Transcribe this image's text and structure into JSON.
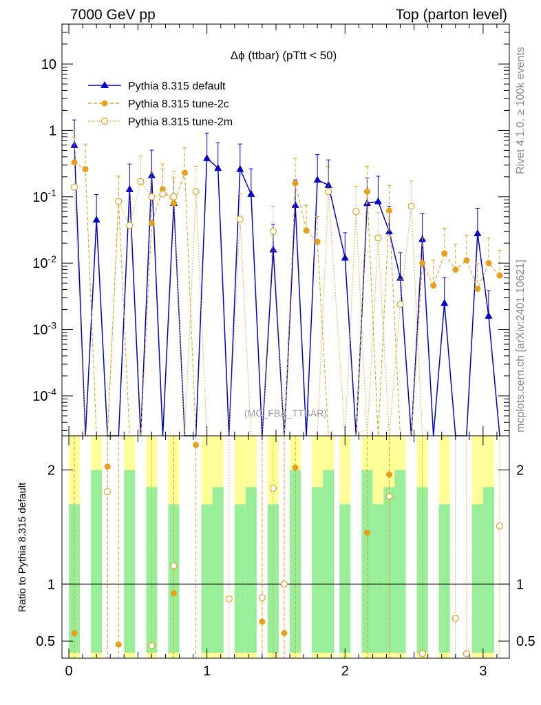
{
  "header": {
    "left": "7000 GeV pp",
    "right": "Top (parton level)"
  },
  "side_labels": {
    "rivet": "Rivet 4.1.0, ≥ 100k events",
    "mcplots": "mcplots.cern.ch [arXiv:2401.10621]"
  },
  "chart_data": [
    {
      "type": "line",
      "title": "Δϕ (ttbar) (pTtt < 50)",
      "watermark": "(MC_FBA_TTBAR)",
      "yscale": "log",
      "ylim": [
        2.5e-05,
        40
      ],
      "xlim": [
        -0.05,
        3.19
      ],
      "yticks": [
        {
          "v": 10,
          "label": "10"
        },
        {
          "v": 1,
          "label": "1"
        },
        {
          "v": 0.1,
          "label": "10^-1"
        },
        {
          "v": 0.01,
          "label": "10^-2"
        },
        {
          "v": 0.001,
          "label": "10^-3"
        },
        {
          "v": 0.0001,
          "label": "10^-4"
        }
      ],
      "legend": {
        "placement": "top-left",
        "entries": [
          "Pythia 8.315 default",
          "Pythia 8.315 tune-2c",
          "Pythia 8.315 tune-2m"
        ]
      },
      "series": [
        {
          "name": "Pythia 8.315 default",
          "color": "#0000cc",
          "marker": "triangle",
          "style": "solid",
          "x": [
            0.04,
            0.12,
            0.2,
            0.28,
            0.36,
            0.44,
            0.52,
            0.6,
            0.68,
            0.76,
            0.84,
            0.92,
            1.0,
            1.08,
            1.16,
            1.24,
            1.32,
            1.4,
            1.48,
            1.56,
            1.64,
            1.72,
            1.8,
            1.88,
            2.0,
            2.08,
            2.16,
            2.24,
            2.32,
            2.4,
            2.48,
            2.56,
            2.64,
            2.72,
            2.8,
            2.88,
            2.96,
            3.04,
            3.12
          ],
          "y": [
            0.6,
            0,
            0.045,
            0,
            0,
            0.13,
            0,
            0.21,
            0,
            0.08,
            0,
            0,
            0.38,
            0.27,
            0,
            0.26,
            0.11,
            0,
            0.016,
            0,
            0.075,
            0,
            0.18,
            0.15,
            0.012,
            0,
            0.08,
            0.085,
            0.03,
            0.006,
            0,
            0.023,
            0,
            0.0025,
            0,
            0,
            0.028,
            0.0016,
            0
          ]
        },
        {
          "name": "Pythia 8.315 tune-2c",
          "color": "#e8a01c",
          "marker": "filled-circle",
          "style": "dashed",
          "x": [
            0.04,
            0.12,
            0.2,
            0.28,
            0.36,
            0.44,
            0.52,
            0.6,
            0.68,
            0.76,
            0.84,
            0.92,
            1.0,
            1.08,
            1.16,
            1.24,
            1.32,
            1.4,
            1.48,
            1.56,
            1.64,
            1.72,
            1.8,
            1.88,
            2.0,
            2.08,
            2.16,
            2.24,
            2.32,
            2.4,
            2.48,
            2.56,
            2.64,
            2.72,
            2.8,
            2.88,
            2.96,
            3.04,
            3.12
          ],
          "y": [
            0.33,
            0.26,
            0,
            0,
            0.085,
            0,
            0,
            0.04,
            0.13,
            0.08,
            0.23,
            0,
            0,
            0,
            0,
            0,
            0,
            0,
            0,
            0,
            0.16,
            0.031,
            0.021,
            0,
            0,
            0,
            0.12,
            0,
            0.062,
            0,
            0,
            0.01,
            0.0046,
            0.014,
            0.008,
            0.011,
            0.0041,
            0.01,
            0.0065
          ]
        },
        {
          "name": "Pythia 8.315 tune-2m",
          "color": "#e8a01c",
          "marker": "open-circle",
          "style": "dotted",
          "x": [
            0.04,
            0.12,
            0.2,
            0.28,
            0.36,
            0.44,
            0.52,
            0.6,
            0.68,
            0.76,
            0.84,
            0.92,
            1.0,
            1.08,
            1.16,
            1.24,
            1.32,
            1.4,
            1.48,
            1.56,
            1.64,
            1.72,
            1.8,
            1.88,
            2.0,
            2.08,
            2.16,
            2.24,
            2.32,
            2.4,
            2.48,
            2.56,
            2.64,
            2.72,
            2.8,
            2.88,
            2.96,
            3.04,
            3.12
          ],
          "y": [
            0.14,
            0,
            0,
            0,
            0.085,
            0.037,
            0.17,
            0.1,
            0.11,
            0.1,
            0,
            0.12,
            0,
            0,
            0,
            0.046,
            0,
            0,
            0.03,
            0,
            0,
            0,
            0,
            0.12,
            0,
            0.06,
            0,
            0.024,
            0,
            0.0024,
            0.072,
            0,
            0,
            0,
            0,
            0,
            0,
            0,
            0
          ]
        }
      ]
    },
    {
      "type": "line",
      "ylabel": "Ratio to Pythia 8.315 default",
      "xlim": [
        -0.05,
        3.19
      ],
      "ylim": [
        0.35,
        2.3
      ],
      "xticks": [
        0,
        1,
        2,
        3
      ],
      "yticks": [
        0.5,
        1,
        2
      ],
      "reference_line": 1,
      "series": [
        {
          "name": "Pythia 8.315 tune-2c",
          "x": [
            0.04,
            0.28,
            0.36,
            0.76,
            0.92,
            1.4,
            1.56,
            1.64,
            2.16,
            2.32
          ],
          "y": [
            0.57,
            2.03,
            0.47,
            0.92,
            2.22,
            0.67,
            0.57,
            2.02,
            1.45,
            1.96
          ]
        },
        {
          "name": "Pythia 8.315 tune-2m",
          "x": [
            0.28,
            0.6,
            0.76,
            1.16,
            1.4,
            1.48,
            1.56,
            2.32,
            2.56,
            2.8,
            2.88,
            3.12
          ],
          "y": [
            1.81,
            0.46,
            1.16,
            0.87,
            0.88,
            1.84,
            1.0,
            1.77,
            0.39,
            0.7,
            0.39,
            1.51
          ]
        }
      ]
    }
  ]
}
